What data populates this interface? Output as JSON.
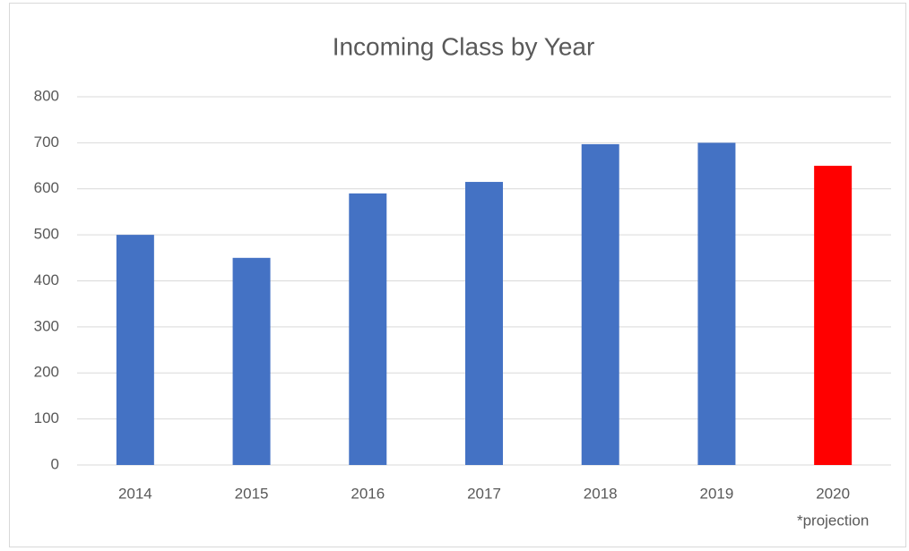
{
  "chart_data": {
    "type": "bar",
    "title": "Incoming Class by Year",
    "categories": [
      "2014",
      "2015",
      "2016",
      "2017",
      "2018",
      "2019",
      "2020"
    ],
    "values": [
      500,
      450,
      590,
      615,
      697,
      700,
      650
    ],
    "colors": [
      "#4472c4",
      "#4472c4",
      "#4472c4",
      "#4472c4",
      "#4472c4",
      "#4472c4",
      "#ff0000"
    ],
    "annotation": "*projection",
    "ylim": [
      0,
      800
    ],
    "yticks": [
      0,
      100,
      200,
      300,
      400,
      500,
      600,
      700,
      800
    ],
    "grid": true
  }
}
